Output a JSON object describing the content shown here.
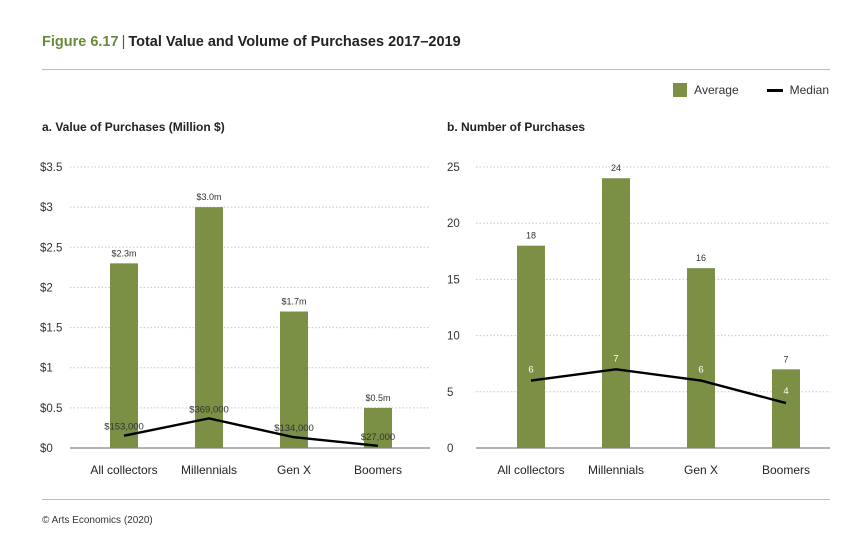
{
  "figure": {
    "number": "Figure 6.17",
    "separator": "|",
    "title": "Total Value and Volume of Purchases 2017–2019"
  },
  "legend": {
    "average_label": "Average",
    "median_label": "Median",
    "average_color": "#7b8f45",
    "median_color": "#000000"
  },
  "footer": {
    "source": "© Arts Economics (2020)"
  },
  "chart_data": [
    {
      "type": "bar",
      "title": "a. Value of Purchases (Million $)",
      "categories": [
        "All collectors",
        "Millennials",
        "Gen X",
        "Boomers"
      ],
      "ylim": [
        0,
        3.5
      ],
      "yticks": [
        0,
        0.5,
        1,
        1.5,
        2,
        2.5,
        3,
        3.5
      ],
      "ytick_labels": [
        "$0",
        "$0.5",
        "$1",
        "$1.5",
        "$2",
        "$2.5",
        "$3",
        "$3.5"
      ],
      "grid": true,
      "series": [
        {
          "name": "Average",
          "type": "bar",
          "values": [
            2.3,
            3.0,
            1.7,
            0.5
          ],
          "labels": [
            "$2.3m",
            "$3.0m",
            "$1.7m",
            "$0.5m"
          ]
        },
        {
          "name": "Median",
          "type": "line",
          "values": [
            0.153,
            0.369,
            0.134,
            0.027
          ],
          "labels": [
            "$153,000",
            "$369,000",
            "$134,000",
            "$27,000"
          ]
        }
      ]
    },
    {
      "type": "bar",
      "title": "b. Number of Purchases",
      "categories": [
        "All collectors",
        "Millennials",
        "Gen X",
        "Boomers"
      ],
      "ylim": [
        0,
        25
      ],
      "yticks": [
        0,
        5,
        10,
        15,
        20,
        25
      ],
      "ytick_labels": [
        "0",
        "5",
        "10",
        "15",
        "20",
        "25"
      ],
      "grid": true,
      "series": [
        {
          "name": "Average",
          "type": "bar",
          "values": [
            18,
            24,
            16,
            7
          ],
          "labels": [
            "18",
            "24",
            "16",
            "7"
          ]
        },
        {
          "name": "Median",
          "type": "line",
          "values": [
            6,
            7,
            6,
            4
          ],
          "labels": [
            "6",
            "7",
            "6",
            "4"
          ]
        }
      ]
    }
  ]
}
